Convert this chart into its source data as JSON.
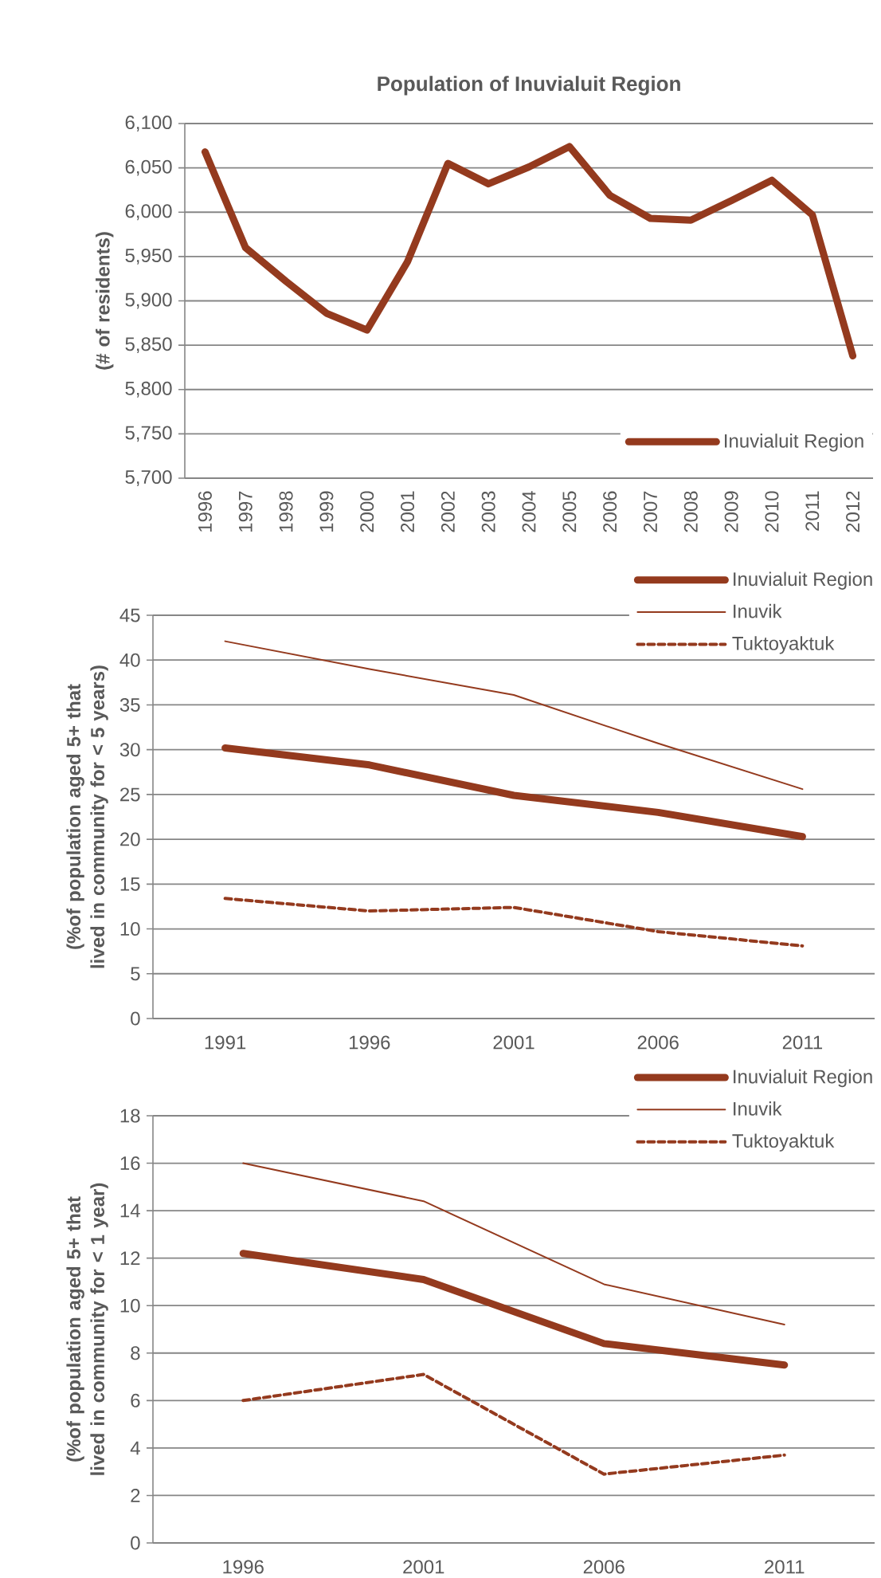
{
  "chart_data": [
    {
      "type": "line",
      "title": "Population of Inuvialuit Region",
      "ylabel": "(# of residents)",
      "categories": [
        "1996",
        "1997",
        "1998",
        "1999",
        "2000",
        "2001",
        "2002",
        "2003",
        "2004",
        "2005",
        "2006",
        "2007",
        "2008",
        "2009",
        "2010",
        "2011",
        "2012"
      ],
      "series": [
        {
          "name": "Inuvialuit Region",
          "color": "#943a1e",
          "line_style": "solid",
          "values": [
            6068,
            5960,
            5922,
            5886,
            5867,
            5944,
            6055,
            6032,
            6051,
            6074,
            6019,
            5993,
            5991,
            6013,
            6036,
            5997,
            5838
          ]
        }
      ],
      "ylim": [
        5700,
        6100
      ],
      "yticks": [
        {
          "value": 5700,
          "label": "5,700"
        },
        {
          "value": 5750,
          "label": "5,750"
        },
        {
          "value": 5800,
          "label": "5,800"
        },
        {
          "value": 5850,
          "label": "5,850"
        },
        {
          "value": 5900,
          "label": "5,900"
        },
        {
          "value": 5950,
          "label": "5,950"
        },
        {
          "value": 6000,
          "label": "6,000"
        },
        {
          "value": 6050,
          "label": "6,050"
        },
        {
          "value": 6100,
          "label": "6,100"
        }
      ],
      "grid": "y",
      "legend": "bottom right"
    },
    {
      "type": "line",
      "ylabel": "(%of population aged 5+ that lived in community for < 5 years)",
      "categories": [
        "1991",
        "1996",
        "2001",
        "2006",
        "2011"
      ],
      "series": [
        {
          "name": "Inuvialuit Region",
          "color": "#943a1e",
          "line_style": "solid",
          "values": [
            30.2,
            28.3,
            24.9,
            23.0,
            20.3
          ]
        },
        {
          "name": "Inuvik",
          "color": "#943a1e",
          "line_style": "solid",
          "values": [
            42.1,
            39.0,
            36.1,
            30.7,
            25.6
          ]
        },
        {
          "name": "Tuktoyaktuk",
          "color": "#943a1e",
          "line_style": "dashed",
          "values": [
            13.4,
            12.0,
            12.4,
            9.7,
            8.1
          ]
        }
      ],
      "ylim": [
        0,
        45
      ],
      "yticks": [
        0,
        5,
        10,
        15,
        20,
        25,
        30,
        35,
        40,
        45
      ],
      "grid": "y",
      "legend": "top right"
    },
    {
      "type": "line",
      "ylabel": "(%of population aged 5+ that lived in community for < 1 year)",
      "categories": [
        "1996",
        "2001",
        "2006",
        "2011"
      ],
      "series": [
        {
          "name": "Inuvialuit Region",
          "color": "#943a1e",
          "line_style": "solid",
          "values": [
            12.2,
            11.1,
            8.4,
            7.5
          ]
        },
        {
          "name": "Inuvik",
          "color": "#943a1e",
          "line_style": "solid",
          "values": [
            16.0,
            14.4,
            10.9,
            9.2
          ]
        },
        {
          "name": "Tuktoyaktuk",
          "color": "#943a1e",
          "line_style": "dashed",
          "values": [
            6.0,
            7.1,
            2.9,
            3.7
          ]
        }
      ],
      "ylim": [
        0,
        18
      ],
      "yticks": [
        0,
        2,
        4,
        6,
        8,
        10,
        12,
        14,
        16,
        18
      ],
      "grid": "y",
      "legend": "top right"
    }
  ]
}
